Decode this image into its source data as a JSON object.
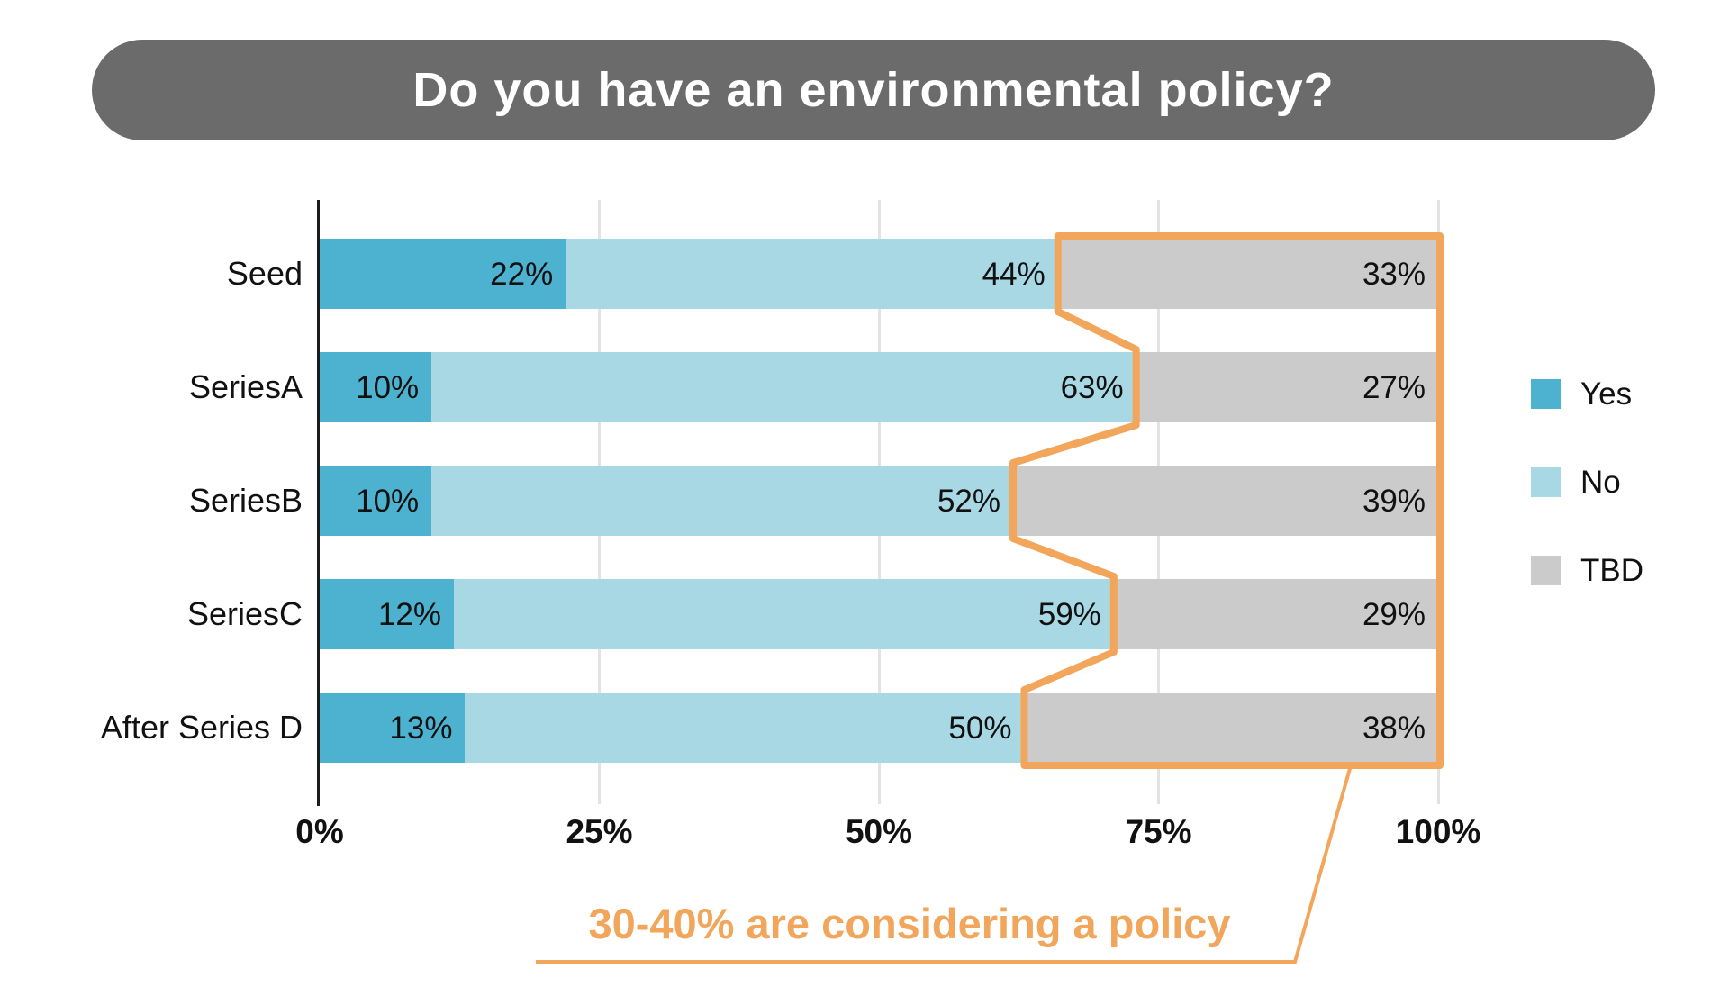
{
  "title": "Do you have an environmental policy?",
  "colors": {
    "title_bg": "#6B6B6B",
    "title_text": "#FFFFFF",
    "yes": "#4DB2D0",
    "no": "#A9D8E5",
    "tbd": "#CBCBCB",
    "highlight_orange": "#F2A65C",
    "axis": "#1C1C1C",
    "grid": "#E3E3E3",
    "label_text": "#111111"
  },
  "legend": {
    "items": [
      {
        "label": "Yes",
        "color": "#4DB2D0"
      },
      {
        "label": "No",
        "color": "#A9D8E5"
      },
      {
        "label": "TBD",
        "color": "#CBCBCB"
      }
    ]
  },
  "annotation": {
    "text": "30-40% are considering a policy",
    "color": "#F2A65C"
  },
  "chart_data": {
    "type": "bar",
    "orientation": "horizontal",
    "stacked": true,
    "title": "Do you have an environmental policy?",
    "categories": [
      "Seed",
      "SeriesA",
      "SeriesB",
      "SeriesC",
      "After Series D"
    ],
    "series": [
      {
        "name": "Yes",
        "color": "#4DB2D0",
        "values": [
          22,
          10,
          10,
          12,
          13
        ]
      },
      {
        "name": "No",
        "color": "#A9D8E5",
        "values": [
          44,
          63,
          52,
          59,
          50
        ]
      },
      {
        "name": "TBD",
        "color": "#CBCBCB",
        "values": [
          33,
          27,
          39,
          29,
          38
        ]
      }
    ],
    "value_label_suffix": "%",
    "x_ticks": [
      "0%",
      "25%",
      "50%",
      "75%",
      "100%"
    ],
    "x_tick_values": [
      0,
      25,
      50,
      75,
      100
    ],
    "xlim": [
      0,
      100
    ],
    "grid": true,
    "legend_position": "right",
    "highlight": {
      "target_series": "TBD",
      "outline_color": "#F2A65C",
      "annotation": "30-40% are considering a policy"
    }
  }
}
